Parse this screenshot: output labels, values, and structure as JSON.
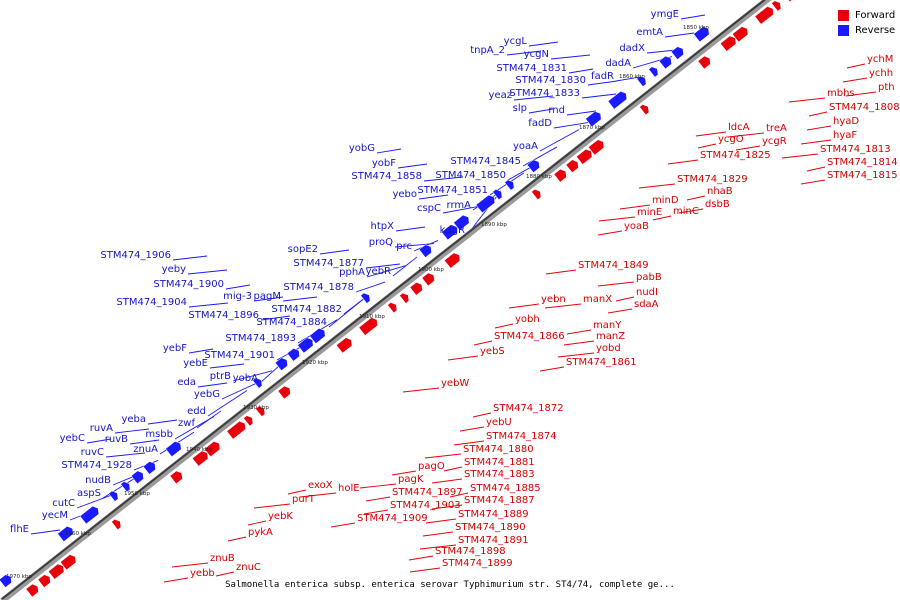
{
  "caption": "Salmonella enterica subsp. enterica serovar Typhimurium str. ST4/74, complete ge...",
  "legend": {
    "forward": {
      "label": "Forward",
      "color": "#e8000b"
    },
    "reverse": {
      "label": "Reverse",
      "color": "#1a1aff"
    }
  },
  "ticks": [
    "1850 kbp",
    "1860 kbp",
    "1870 kbp",
    "1880 kbp",
    "1890 kbp",
    "1900 kbp",
    "1910 kbp",
    "1920 kbp",
    "1930 kbp",
    "1940 kbp",
    "1950 kbp",
    "1960 kbp",
    "1970 kbp"
  ],
  "forward_genes": [
    "ychM",
    "ychh",
    "pth",
    "mbhs",
    "STM474_1808",
    "hyaD",
    "hyaF",
    "STM474_1813",
    "STM474_1814",
    "STM474_1815",
    "ldcA",
    "treA",
    "ycgO",
    "ycgR",
    "STM474_1825",
    "STM474_1829",
    "nhaB",
    "dsbB",
    "minD",
    "minE",
    "minC",
    "yoaB",
    "STM474_1849",
    "pabB",
    "nudI",
    "sdaA",
    "yebn",
    "manX",
    "yobh",
    "manY",
    "manZ",
    "yobd",
    "STM474_1866",
    "STM474_1861",
    "yebS",
    "yebW",
    "STM474_1872",
    "yebU",
    "STM474_1874",
    "STM474_1880",
    "STM474_1881",
    "pagO",
    "STM474_1883",
    "pagK",
    "STM474_1885",
    "STM474_1897",
    "STM474_1887",
    "holE",
    "exoX",
    "STM474_1903",
    "STM474_1889",
    "purT",
    "yebK",
    "STM474_1909",
    "STM474_1890",
    "STM474_1891",
    "pykA",
    "STM474_1898",
    "STM474_1899",
    "znuB",
    "znuC",
    "yebb"
  ],
  "reverse_genes": [
    "ymgE",
    "emtA",
    "dadX",
    "dadA",
    "fadR",
    "ycgL",
    "tnpA_2",
    "ycgN",
    "STM474_1831",
    "STM474_1830",
    "STM474_1833",
    "yeaz",
    "slp",
    "rnd",
    "fadD",
    "yoaA",
    "yobG",
    "yobF",
    "STM474_1845",
    "STM474_1858",
    "STM474_1850",
    "yebo",
    "STM474_1851",
    "cspC",
    "rrmA",
    "htpX",
    "kdgR",
    "proQ",
    "prc",
    "sopE2",
    "STM474_1877",
    "pphA",
    "yebR",
    "STM474_1878",
    "STM474_1906",
    "yeby",
    "STM474_1900",
    "mig-3",
    "pagM",
    "STM474_1904",
    "STM474_1882",
    "STM474_1896",
    "STM474_1884",
    "STM474_1893",
    "yebF",
    "STM474_1901",
    "yebE",
    "ptrB",
    "yobA",
    "eda",
    "yebG",
    "edd",
    "zwf",
    "yeba",
    "ruvA",
    "msbb",
    "yebC",
    "ruvB",
    "znuA",
    "ruvC",
    "STM474_1928",
    "nudB",
    "aspS",
    "cutC",
    "yecM",
    "flhE"
  ]
}
